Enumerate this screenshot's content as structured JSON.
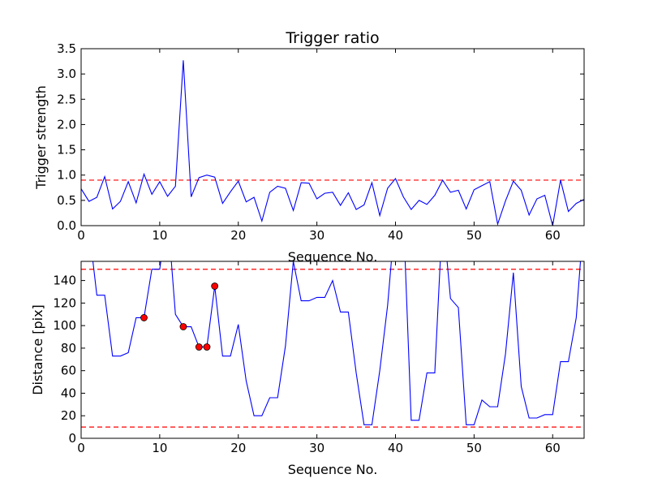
{
  "chart_data": [
    {
      "type": "line",
      "title": "Trigger ratio",
      "xlabel": "Sequence No.",
      "ylabel": "Trigger strength",
      "xlim": [
        0,
        64
      ],
      "ylim": [
        0,
        3.5
      ],
      "xticks": [
        0,
        10,
        20,
        30,
        40,
        50,
        60
      ],
      "yticks": [
        0.0,
        0.5,
        1.0,
        1.5,
        2.0,
        2.5,
        3.0,
        3.5
      ],
      "ytick_labels": [
        "0.0",
        "0.5",
        "1.0",
        "1.5",
        "2.0",
        "2.5",
        "3.0",
        "3.5"
      ],
      "grid": false,
      "line_color": "#0000ff",
      "series": [
        {
          "x": [
            0,
            1,
            2,
            3,
            4,
            5,
            6,
            7,
            8,
            9,
            10,
            11,
            12,
            13,
            14,
            15,
            16,
            17,
            18,
            19,
            20,
            21,
            22,
            23,
            24,
            25,
            26,
            27,
            28,
            29,
            30,
            31,
            32,
            33,
            34,
            35,
            36,
            37,
            38,
            39,
            40,
            41,
            42,
            43,
            44,
            45,
            46,
            47,
            48,
            49,
            50,
            51,
            52,
            53,
            54,
            55,
            56,
            57,
            58,
            59,
            60,
            61,
            62,
            63,
            64
          ],
          "y": [
            0.73,
            0.48,
            0.56,
            0.97,
            0.33,
            0.48,
            0.87,
            0.45,
            1.02,
            0.62,
            0.87,
            0.58,
            0.78,
            3.27,
            0.57,
            0.95,
            1.0,
            0.96,
            0.44,
            0.67,
            0.88,
            0.47,
            0.56,
            0.09,
            0.66,
            0.78,
            0.74,
            0.3,
            0.85,
            0.84,
            0.53,
            0.64,
            0.66,
            0.4,
            0.65,
            0.32,
            0.41,
            0.85,
            0.2,
            0.74,
            0.93,
            0.57,
            0.32,
            0.5,
            0.42,
            0.6,
            0.9,
            0.66,
            0.7,
            0.33,
            0.71,
            0.79,
            0.87,
            0.03,
            0.49,
            0.88,
            0.7,
            0.21,
            0.53,
            0.6,
            0.0,
            0.9,
            0.28,
            0.44,
            0.52
          ]
        }
      ],
      "reference_lines": [
        {
          "axis": "y",
          "value": 0.9,
          "style": "dashed",
          "color": "#ff0000"
        }
      ]
    },
    {
      "type": "line",
      "title": "",
      "xlabel": "Sequence No.",
      "ylabel": "Distance [pix]",
      "xlim": [
        0,
        64
      ],
      "ylim": [
        0,
        157
      ],
      "xticks": [
        0,
        10,
        20,
        30,
        40,
        50,
        60
      ],
      "yticks": [
        0,
        20,
        40,
        60,
        80,
        100,
        120,
        140
      ],
      "ytick_labels": [
        "0",
        "20",
        "40",
        "60",
        "80",
        "100",
        "120",
        "140"
      ],
      "grid": false,
      "line_color": "#0000ff",
      "series": [
        {
          "x": [
            1.5,
            2,
            3,
            4,
            5,
            6,
            7,
            8,
            9,
            10,
            11,
            12,
            13,
            14,
            15,
            16,
            17,
            18,
            19,
            20,
            21,
            22,
            23,
            24,
            25,
            26,
            27,
            28,
            29,
            30,
            31,
            32,
            33,
            34,
            35,
            36,
            37,
            38,
            39,
            40,
            41,
            42,
            43,
            44,
            45,
            46,
            47,
            48,
            49,
            50,
            51,
            52,
            53,
            54,
            55,
            56,
            57,
            58,
            59,
            60,
            61,
            62,
            63,
            64
          ],
          "y": [
            157,
            127,
            127,
            73,
            73,
            76,
            107,
            107,
            150,
            150,
            200,
            110,
            99,
            99,
            81,
            81,
            135,
            73,
            73,
            101,
            51,
            20,
            20,
            36,
            36,
            82,
            157,
            122,
            122,
            125,
            125,
            140,
            112,
            112,
            58,
            12,
            12,
            60,
            118,
            200,
            200,
            16,
            16,
            58,
            58,
            200,
            124,
            116,
            12,
            12,
            34,
            28,
            28,
            75,
            147,
            46,
            18,
            18,
            21,
            21,
            68,
            68,
            107,
            200
          ]
        }
      ],
      "markers": {
        "color": "#ff0000",
        "points": [
          {
            "x": 8,
            "y": 107
          },
          {
            "x": 13,
            "y": 99
          },
          {
            "x": 15,
            "y": 81
          },
          {
            "x": 16,
            "y": 81
          },
          {
            "x": 17,
            "y": 135
          }
        ]
      },
      "reference_lines": [
        {
          "axis": "y",
          "value": 150,
          "style": "dashed",
          "color": "#ff0000"
        },
        {
          "axis": "y",
          "value": 10,
          "style": "dashed",
          "color": "#ff0000"
        }
      ]
    }
  ]
}
